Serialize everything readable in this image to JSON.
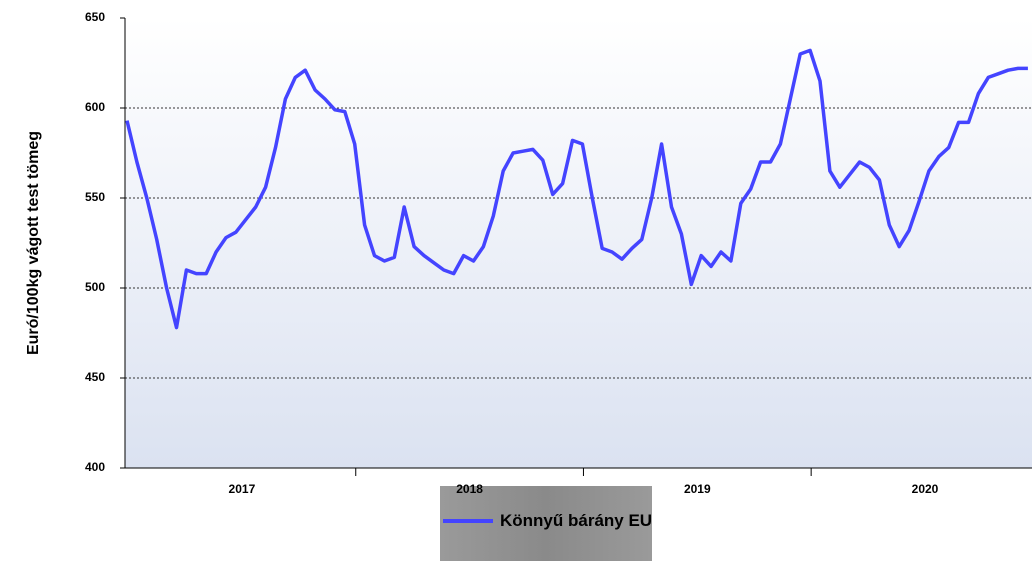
{
  "chart_data": {
    "type": "line",
    "y_label": "Euró/100kg vágott test tömeg",
    "categories": [
      null,
      null,
      null,
      null,
      null,
      null,
      null,
      null,
      null,
      null,
      null,
      "2017",
      null,
      null,
      null,
      null,
      null,
      null,
      null,
      null,
      null,
      null,
      null,
      null,
      null,
      null,
      null,
      null,
      null,
      null,
      null,
      null,
      null,
      null,
      "2018",
      null,
      null,
      null,
      null,
      null,
      null,
      null,
      null,
      null,
      null,
      null,
      null,
      null,
      null,
      null,
      null,
      null,
      null,
      null,
      null,
      null,
      null,
      "2019",
      null,
      null,
      null,
      null,
      null,
      null,
      null,
      null,
      null,
      null,
      null,
      null,
      null,
      null,
      null,
      null,
      null,
      null,
      null,
      null,
      null,
      null,
      "2020",
      null,
      null,
      null,
      null,
      null,
      null,
      null,
      null,
      null,
      null,
      null
    ],
    "series": [
      {
        "name": "Könnyű bárány EU",
        "color": "#4444ff",
        "values": [
          593,
          570,
          550,
          527,
          500,
          478,
          510,
          508,
          508,
          520,
          528,
          531,
          538,
          545,
          556,
          578,
          605,
          617,
          621,
          610,
          605,
          599,
          598,
          580,
          535,
          518,
          515,
          517,
          545,
          523,
          518,
          514,
          510,
          508,
          518,
          515,
          523,
          540,
          565,
          575,
          576,
          577,
          571,
          552,
          558,
          582,
          580,
          550,
          522,
          520,
          516,
          522,
          527,
          550,
          580,
          545,
          530,
          502,
          518,
          512,
          520,
          515,
          547,
          555,
          570,
          570,
          580,
          605,
          630,
          632,
          615,
          565,
          556,
          563,
          570,
          567,
          560,
          535,
          523,
          532,
          548,
          565,
          573,
          578,
          592,
          592,
          608,
          617,
          619,
          621,
          622,
          622
        ]
      }
    ],
    "ylim": [
      400,
      650
    ],
    "yticks": [
      400,
      450,
      500,
      550,
      600,
      650
    ],
    "grid": true
  }
}
